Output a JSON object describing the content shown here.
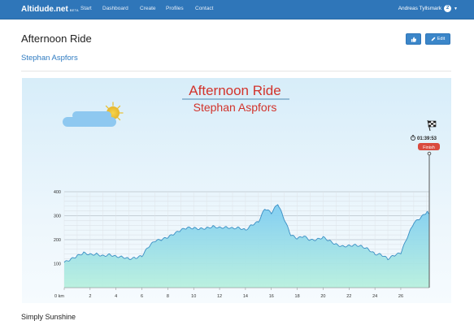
{
  "navbar": {
    "brand": "Altidude.net",
    "brand_tag": "BETA",
    "items": [
      "Start",
      "Dashboard",
      "Create",
      "Profiles",
      "Contact"
    ],
    "user_name": "Andreas Tyllsmark",
    "notification_count": "2",
    "bg_color": "#2f76b9"
  },
  "page": {
    "title": "Afternoon Ride",
    "author": "Stephan Aspfors",
    "description": "Simply Sunshine",
    "buttons": {
      "edit_label": "Edit",
      "like_icon": "thumbs-up-icon",
      "edit_icon": "pencil-icon"
    }
  },
  "profile_image": {
    "title": "Afternoon Ride",
    "subtitle": "Stephan Aspfors",
    "finish_time": "01:39:53",
    "finish_label": "Finish",
    "chart_data": {
      "type": "area",
      "xlabel": "",
      "ylabel": "",
      "x_unit_label": "0 km",
      "xlim": [
        0,
        28.2
      ],
      "ylim": [
        0,
        400
      ],
      "x_ticks": [
        0,
        2,
        4,
        6,
        8,
        10,
        12,
        14,
        16,
        18,
        20,
        22,
        24,
        26
      ],
      "y_ticks": [
        0,
        100,
        200,
        300,
        400
      ],
      "grid": true,
      "series": [
        {
          "x": [
            0,
            0.5,
            1,
            1.5,
            2,
            2.5,
            3,
            3.5,
            4,
            4.5,
            5,
            5.5,
            6,
            6.5,
            7,
            7.5,
            8,
            8.5,
            9,
            9.5,
            10,
            10.5,
            11,
            11.5,
            12,
            12.5,
            13,
            13.5,
            14,
            14.5,
            15,
            15.5,
            16,
            16.5,
            17,
            17.5,
            18,
            18.5,
            19,
            19.5,
            20,
            20.5,
            21,
            21.5,
            22,
            22.5,
            23,
            23.5,
            24,
            24.5,
            25,
            25.5,
            26,
            26.5,
            27,
            27.5,
            28,
            28.2
          ],
          "values": [
            105,
            118,
            132,
            145,
            138,
            140,
            132,
            138,
            130,
            128,
            120,
            124,
            132,
            170,
            195,
            200,
            210,
            225,
            240,
            250,
            248,
            245,
            248,
            255,
            250,
            252,
            248,
            250,
            240,
            262,
            275,
            330,
            312,
            350,
            285,
            220,
            205,
            215,
            198,
            200,
            210,
            195,
            180,
            172,
            175,
            178,
            172,
            160,
            140,
            138,
            120,
            135,
            145,
            210,
            270,
            290,
            315,
            312
          ]
        }
      ],
      "colors": {
        "fill_top": "#7fcdf2",
        "fill_bottom": "#b8f0de",
        "line": "#3a8fc4"
      }
    }
  }
}
